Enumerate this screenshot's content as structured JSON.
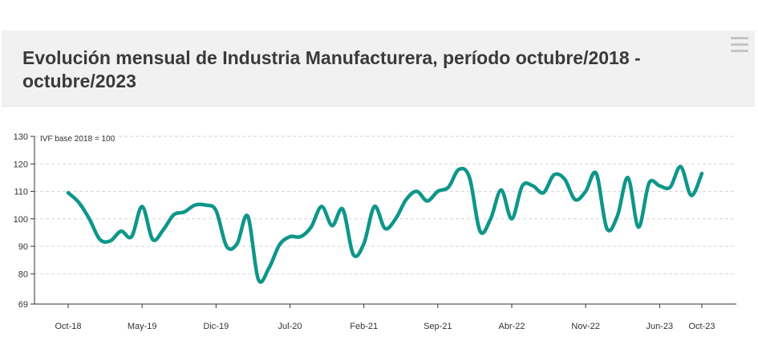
{
  "header": {
    "title": "Evolución mensual de Industria Manufacturera, período octubre/2018 - octubre/2023",
    "menu_icon": "hamburger-menu-icon"
  },
  "chart_data": {
    "type": "line",
    "title": "Evolución mensual de Industria Manufacturera, período octubre/2018 - octubre/2023",
    "ylabel": "IVF base 2018 = 100",
    "xlabel": "",
    "ylim": [
      69,
      130
    ],
    "yticks": [
      69,
      80,
      90,
      100,
      110,
      120,
      130
    ],
    "xtick_labels": [
      "Oct-18",
      "May-19",
      "Dic-19",
      "Jul-20",
      "Feb-21",
      "Sep-21",
      "Abr-22",
      "Nov-22",
      "Jun-23",
      "Oct-23"
    ],
    "grid": true,
    "line_color": "#0e968a",
    "series": [
      {
        "name": "",
        "x": [
          "Oct-18",
          "Nov-18",
          "Dic-18",
          "Ene-19",
          "Feb-19",
          "Mar-19",
          "Abr-19",
          "May-19",
          "Jun-19",
          "Jul-19",
          "Ago-19",
          "Sep-19",
          "Oct-19",
          "Nov-19",
          "Dic-19",
          "Ene-20",
          "Feb-20",
          "Mar-20",
          "Abr-20",
          "May-20",
          "Jun-20",
          "Jul-20",
          "Ago-20",
          "Sep-20",
          "Oct-20",
          "Nov-20",
          "Dic-20",
          "Ene-21",
          "Feb-21",
          "Mar-21",
          "Abr-21",
          "May-21",
          "Jun-21",
          "Jul-21",
          "Ago-21",
          "Sep-21",
          "Oct-21",
          "Nov-21",
          "Dic-21",
          "Ene-22",
          "Feb-22",
          "Mar-22",
          "Abr-22",
          "May-22",
          "Jun-22",
          "Jul-22",
          "Ago-22",
          "Sep-22",
          "Oct-22",
          "Nov-22",
          "Dic-22",
          "Ene-23",
          "Feb-23",
          "Mar-23",
          "Abr-23",
          "May-23",
          "Jun-23",
          "Jul-23",
          "Ago-23",
          "Sep-23",
          "Oct-23"
        ],
        "values": [
          109.5,
          106,
          100,
          92.5,
          92,
          95.5,
          93.5,
          104.5,
          92.5,
          96,
          101.5,
          102.5,
          105,
          105,
          103,
          90,
          91,
          101,
          78,
          82,
          90.5,
          93.5,
          93.5,
          97,
          104.5,
          97.5,
          103.5,
          87,
          91,
          104.5,
          96.5,
          100,
          107,
          110,
          106.5,
          110,
          111.5,
          118,
          115,
          95.5,
          100,
          110.5,
          100,
          112,
          112,
          109.5,
          116,
          114.5,
          107,
          110,
          116.5,
          96.5,
          101,
          115,
          97,
          113,
          112,
          111.5,
          119,
          108.5,
          116.5
        ]
      }
    ]
  }
}
